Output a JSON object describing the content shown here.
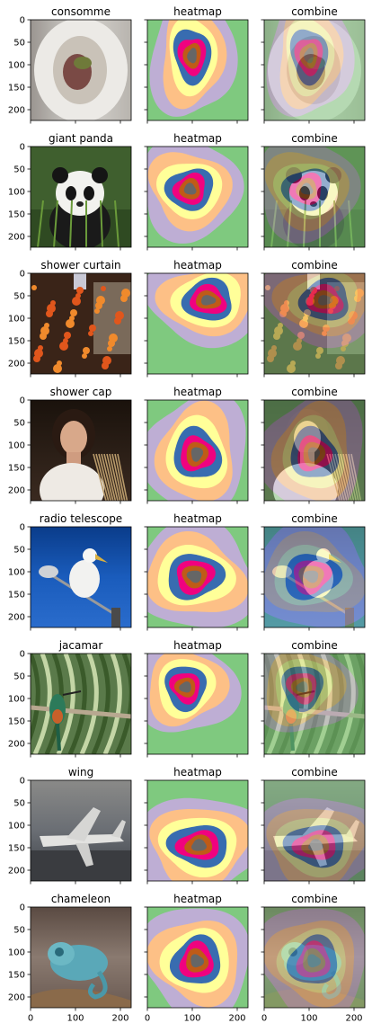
{
  "chart_data": {
    "type": "heatmap",
    "xlim": [
      0,
      224
    ],
    "ylim": [
      0,
      224
    ],
    "x_ticks": [
      0,
      100,
      200
    ],
    "y_ticks": [
      0,
      50,
      100,
      150,
      200
    ],
    "x_tick_labels": [
      "0",
      "100",
      "200"
    ],
    "y_tick_labels": [
      "0",
      "50",
      "100",
      "150",
      "200"
    ],
    "colormap": "Accent",
    "levels_colors": [
      "#7fc97f",
      "#beaed4",
      "#fdc086",
      "#ffff99",
      "#386cb0",
      "#f0027f",
      "#bf5b17",
      "#666666"
    ],
    "column_titles": [
      "heatmap",
      "combine"
    ],
    "rows": [
      {
        "label": "consomme",
        "center": [
          100,
          80
        ],
        "spread": [
          60,
          90
        ],
        "theme": "soup"
      },
      {
        "label": "giant panda",
        "center": [
          95,
          95
        ],
        "spread": [
          75,
          70
        ],
        "theme": "panda"
      },
      {
        "label": "shower curtain",
        "center": [
          135,
          60
        ],
        "spread": [
          85,
          65
        ],
        "theme": "curtain"
      },
      {
        "label": "shower cap",
        "center": [
          110,
          120
        ],
        "spread": [
          75,
          85
        ],
        "theme": "cap"
      },
      {
        "label": "radio telescope",
        "center": [
          105,
          110
        ],
        "spread": [
          90,
          75
        ],
        "theme": "telescope"
      },
      {
        "label": "jacamar",
        "center": [
          85,
          75
        ],
        "spread": [
          70,
          70
        ],
        "theme": "jacamar"
      },
      {
        "label": "wing",
        "center": [
          115,
          145
        ],
        "spread": [
          95,
          70
        ],
        "theme": "wing"
      },
      {
        "label": "chameleon",
        "center": [
          110,
          120
        ],
        "spread": [
          80,
          80
        ],
        "theme": "chameleon"
      }
    ]
  }
}
